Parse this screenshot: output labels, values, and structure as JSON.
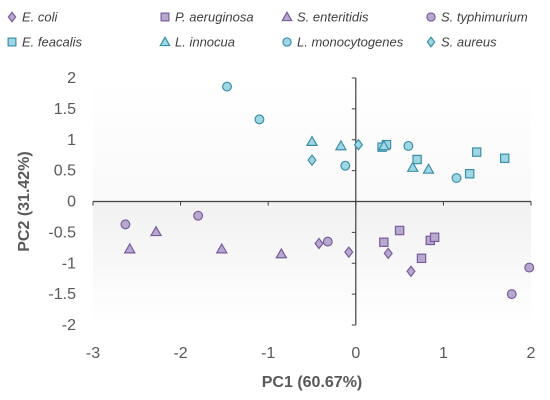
{
  "chart_data": {
    "type": "scatter",
    "title": "",
    "xlabel": "PC1 (60.67%)",
    "ylabel": "PC2 (31.42%)",
    "xlim": [
      -3,
      2
    ],
    "ylim": [
      -2,
      2
    ],
    "xticks": [
      -3,
      -2,
      -1,
      0,
      1,
      2
    ],
    "yticks": [
      -2,
      -1.5,
      -1,
      -0.5,
      0,
      0.5,
      1,
      1.5,
      2
    ],
    "xtick_labels": [
      "-3",
      "-2",
      "-1",
      "0",
      "1",
      "2"
    ],
    "ytick_labels": [
      "-2",
      "-1.5",
      "-1",
      "-0.5",
      "0",
      "0.5",
      "1",
      "1.5",
      "2"
    ],
    "grid": false,
    "legend_position": "top",
    "series": [
      {
        "name": "E. coli",
        "marker": "diamond",
        "fill": "#B7A8CE",
        "stroke": "#7A5C9E",
        "points": [
          [
            -0.42,
            -0.68
          ],
          [
            -0.08,
            -0.82
          ],
          [
            0.37,
            -0.84
          ],
          [
            0.63,
            -1.13
          ]
        ]
      },
      {
        "name": "P. aeruginosa",
        "marker": "square",
        "fill": "#B7A8CE",
        "stroke": "#7A5C9E",
        "points": [
          [
            0.32,
            -0.66
          ],
          [
            0.5,
            -0.47
          ],
          [
            0.75,
            -0.92
          ],
          [
            0.85,
            -0.63
          ],
          [
            0.9,
            -0.58
          ]
        ]
      },
      {
        "name": "S. enteritidis",
        "marker": "triangle",
        "fill": "#B7A8CE",
        "stroke": "#7A5C9E",
        "points": [
          [
            -2.58,
            -0.77
          ],
          [
            -2.28,
            -0.49
          ],
          [
            -1.53,
            -0.77
          ],
          [
            -0.85,
            -0.85
          ]
        ]
      },
      {
        "name": "S. typhimurium",
        "marker": "circle",
        "fill": "#B7A8CE",
        "stroke": "#7A5C9E",
        "points": [
          [
            -2.63,
            -0.37
          ],
          [
            -1.8,
            -0.23
          ],
          [
            -0.32,
            -0.65
          ],
          [
            1.78,
            -1.5
          ],
          [
            1.98,
            -1.07
          ]
        ]
      },
      {
        "name": "E. feacalis",
        "marker": "square",
        "fill": "#9FD6E4",
        "stroke": "#3B8FA8",
        "points": [
          [
            0.3,
            0.88
          ],
          [
            0.35,
            0.92
          ],
          [
            0.7,
            0.68
          ],
          [
            1.3,
            0.45
          ],
          [
            1.38,
            0.8
          ],
          [
            1.7,
            0.7
          ]
        ]
      },
      {
        "name": "L. innocua",
        "marker": "triangle",
        "fill": "#9FD6E4",
        "stroke": "#3B8FA8",
        "points": [
          [
            -0.5,
            0.97
          ],
          [
            -0.17,
            0.9
          ],
          [
            0.32,
            0.9
          ],
          [
            0.65,
            0.55
          ],
          [
            0.83,
            0.52
          ]
        ]
      },
      {
        "name": "L. monocytogenes",
        "marker": "circle",
        "fill": "#9FD6E4",
        "stroke": "#3B8FA8",
        "points": [
          [
            -1.47,
            1.86
          ],
          [
            -1.1,
            1.33
          ],
          [
            -0.12,
            0.58
          ],
          [
            0.6,
            0.9
          ],
          [
            1.15,
            0.38
          ]
        ]
      },
      {
        "name": "S. aureus",
        "marker": "diamond",
        "fill": "#9FD6E4",
        "stroke": "#3B8FA8",
        "points": [
          [
            -0.5,
            0.67
          ],
          [
            0.03,
            0.92
          ]
        ]
      }
    ]
  }
}
